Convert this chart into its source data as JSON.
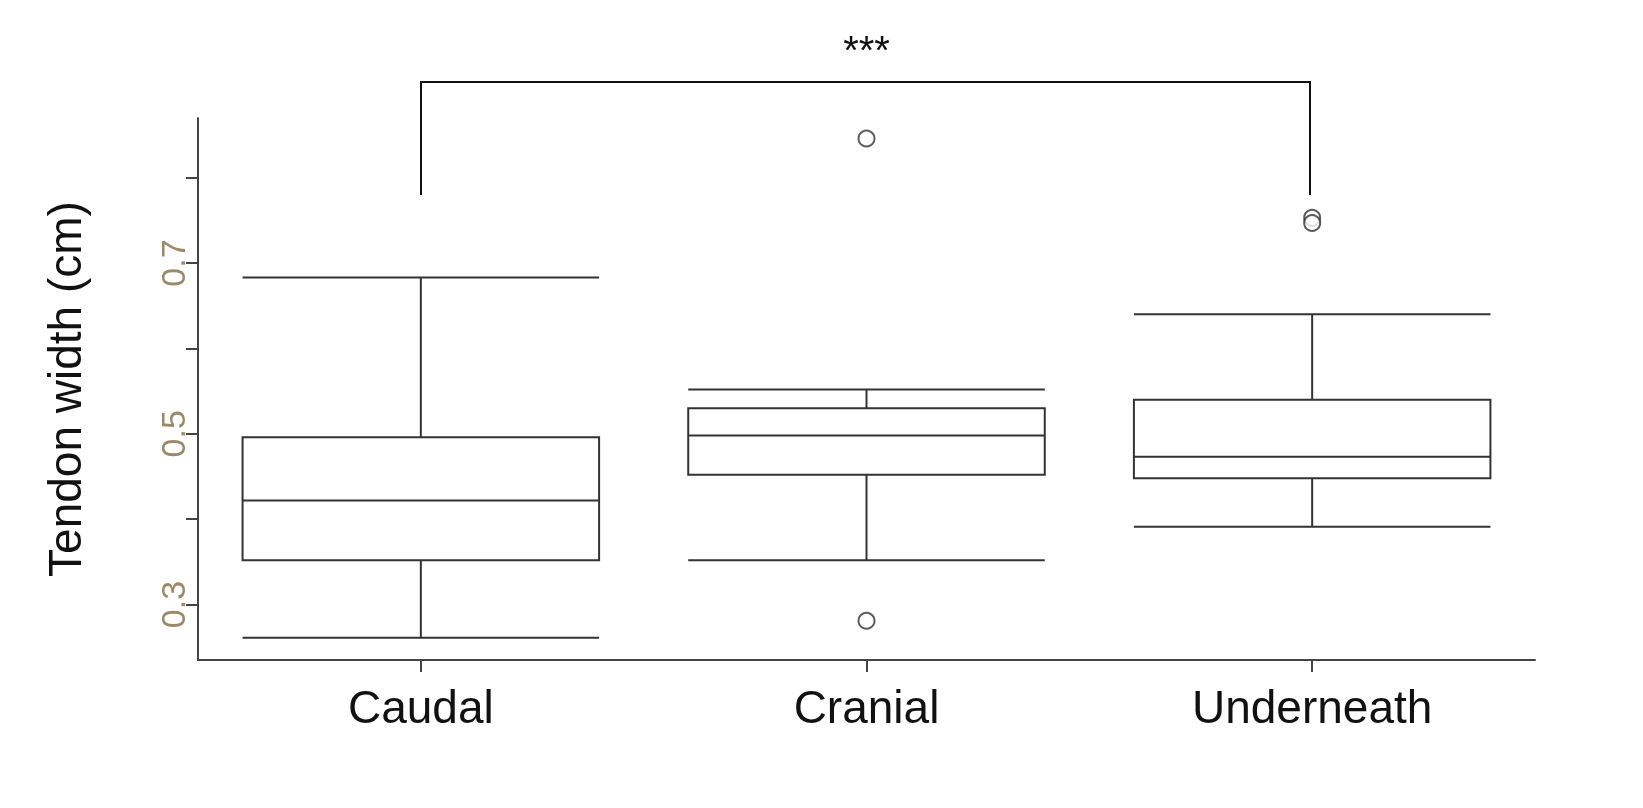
{
  "chart_data": {
    "type": "box",
    "ylabel": "Tendon width (cm)",
    "categories": [
      "Caudal",
      "Cranial",
      "Underneath"
    ],
    "boxes": [
      {
        "low": 0.261,
        "q1": 0.352,
        "median": 0.422,
        "q3": 0.496,
        "high": 0.683
      },
      {
        "low": 0.352,
        "q1": 0.452,
        "median": 0.498,
        "q3": 0.53,
        "high": 0.552,
        "outliers": [
          0.846,
          0.281
        ]
      },
      {
        "low": 0.391,
        "q1": 0.448,
        "median": 0.473,
        "q3": 0.54,
        "high": 0.64,
        "outliers": [
          0.753,
          0.747
        ]
      }
    ],
    "ylim": [
      0.235,
      0.87
    ],
    "yticks": [
      0.3,
      {
        "value": 0.4,
        "label": null
      },
      0.5,
      {
        "value": 0.6,
        "label": null
      },
      0.7,
      {
        "value": 0.8,
        "label": null
      }
    ],
    "annotations": [
      "***"
    ],
    "marker": "circle"
  }
}
